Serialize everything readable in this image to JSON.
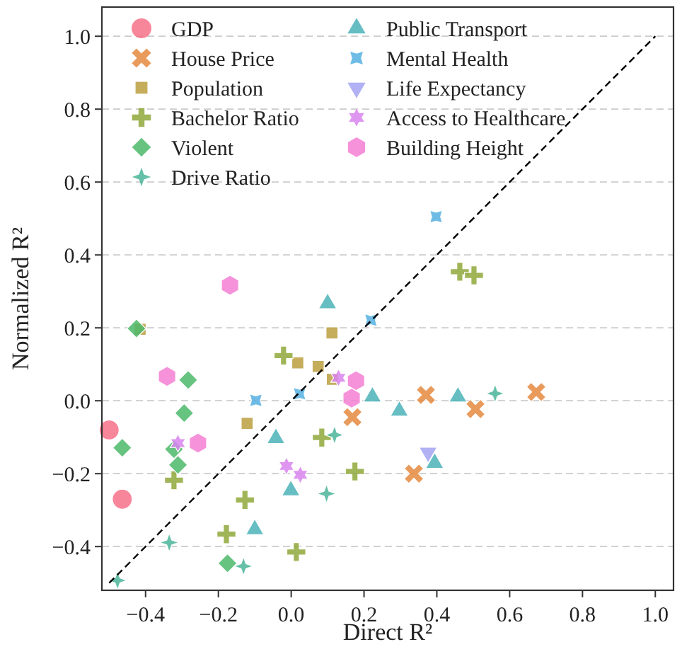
{
  "chart_data": {
    "type": "scatter",
    "xlabel": "Direct R²",
    "ylabel": "Normalized R²",
    "xlim": [
      -0.52,
      1.05
    ],
    "ylim": [
      -0.52,
      1.08
    ],
    "xticks": [
      -0.4,
      -0.2,
      {
        "value": 0,
        "label": "0.0"
      },
      0.2,
      0.4,
      0.6,
      0.8,
      {
        "value": 1,
        "label": "1.0"
      }
    ],
    "yticks": [
      -0.4,
      -0.2,
      {
        "value": 0,
        "label": "0.0"
      },
      0.2,
      0.4,
      0.6,
      0.8,
      {
        "value": 1,
        "label": "1.0"
      }
    ],
    "grid": "y",
    "legend": "top left",
    "series": [
      {
        "name": "GDP",
        "color": "#f77189",
        "marker": "circle",
        "x": [
          -0.5,
          -0.464
        ],
        "values": [
          -0.08,
          -0.27
        ]
      },
      {
        "name": "House Price",
        "color": "#e58a3f",
        "marker": "cross",
        "x": [
          0.168,
          0.37,
          0.506,
          0.673,
          0.337
        ],
        "values": [
          -0.045,
          0.016,
          -0.023,
          0.024,
          -0.2
        ]
      },
      {
        "name": "Population",
        "color": "#bb9f3f",
        "marker": "square",
        "x": [
          -0.415,
          0.112,
          0.018,
          0.074,
          0.113,
          -0.121
        ],
        "values": [
          0.196,
          0.186,
          0.104,
          0.094,
          0.059,
          -0.062
        ]
      },
      {
        "name": "Bachelor Ratio",
        "color": "#8fa83a",
        "marker": "plus",
        "x": [
          -0.021,
          -0.322,
          -0.127,
          -0.178,
          0.014,
          0.084,
          0.175,
          0.463,
          0.502
        ],
        "values": [
          0.124,
          -0.218,
          -0.272,
          -0.366,
          -0.415,
          -0.101,
          -0.194,
          0.354,
          0.344
        ]
      },
      {
        "name": "Violent",
        "color": "#4cb86a",
        "marker": "diamond",
        "x": [
          -0.425,
          -0.283,
          -0.294,
          -0.464,
          -0.322,
          -0.311,
          -0.175
        ],
        "values": [
          0.198,
          0.057,
          -0.034,
          -0.129,
          -0.133,
          -0.176,
          -0.446
        ]
      },
      {
        "name": "Drive Ratio",
        "color": "#4bb59a",
        "marker": "star4",
        "x": [
          -0.477,
          -0.335,
          -0.131,
          0.097,
          0.119,
          0.56
        ],
        "values": [
          -0.493,
          -0.389,
          -0.454,
          -0.255,
          -0.094,
          0.02
        ]
      },
      {
        "name": "Public Transport",
        "color": "#4bb3b8",
        "marker": "triangle",
        "x": [
          0.1,
          -0.042,
          -0.001,
          -0.1,
          0.223,
          0.297,
          0.458,
          0.394
        ],
        "values": [
          0.267,
          -0.103,
          -0.246,
          -0.353,
          0.011,
          -0.028,
          0.011,
          -0.171
        ]
      },
      {
        "name": "Mental Health",
        "color": "#55b0e0",
        "marker": "star",
        "x": [
          0.398,
          0.219,
          -0.097,
          0.023
        ],
        "values": [
          0.505,
          0.221,
          0.001,
          0.019
        ]
      },
      {
        "name": "Life Expectancy",
        "color": "#a3a3f2",
        "marker": "triangle_down",
        "x": [
          0.376
        ],
        "values": [
          -0.142
        ]
      },
      {
        "name": "Access to Healthcare",
        "color": "#d884ef",
        "x": [
          -0.311,
          -0.013,
          0.025,
          0.13
        ],
        "values": [
          -0.116,
          -0.179,
          -0.203,
          0.063
        ]
      },
      {
        "name": "Building Height",
        "color": "#f47fd4",
        "x": [
          -0.168,
          -0.341,
          -0.256,
          0.178,
          0.166
        ],
        "values": [
          0.317,
          0.067,
          -0.116,
          0.055,
          0.007
        ]
      },
      {
        "type": "line",
        "color": "#000000",
        "marker": "none",
        "line_style": "dashed",
        "x": [
          -0.5,
          1.0
        ],
        "values": [
          -0.5,
          1.0
        ]
      }
    ]
  }
}
